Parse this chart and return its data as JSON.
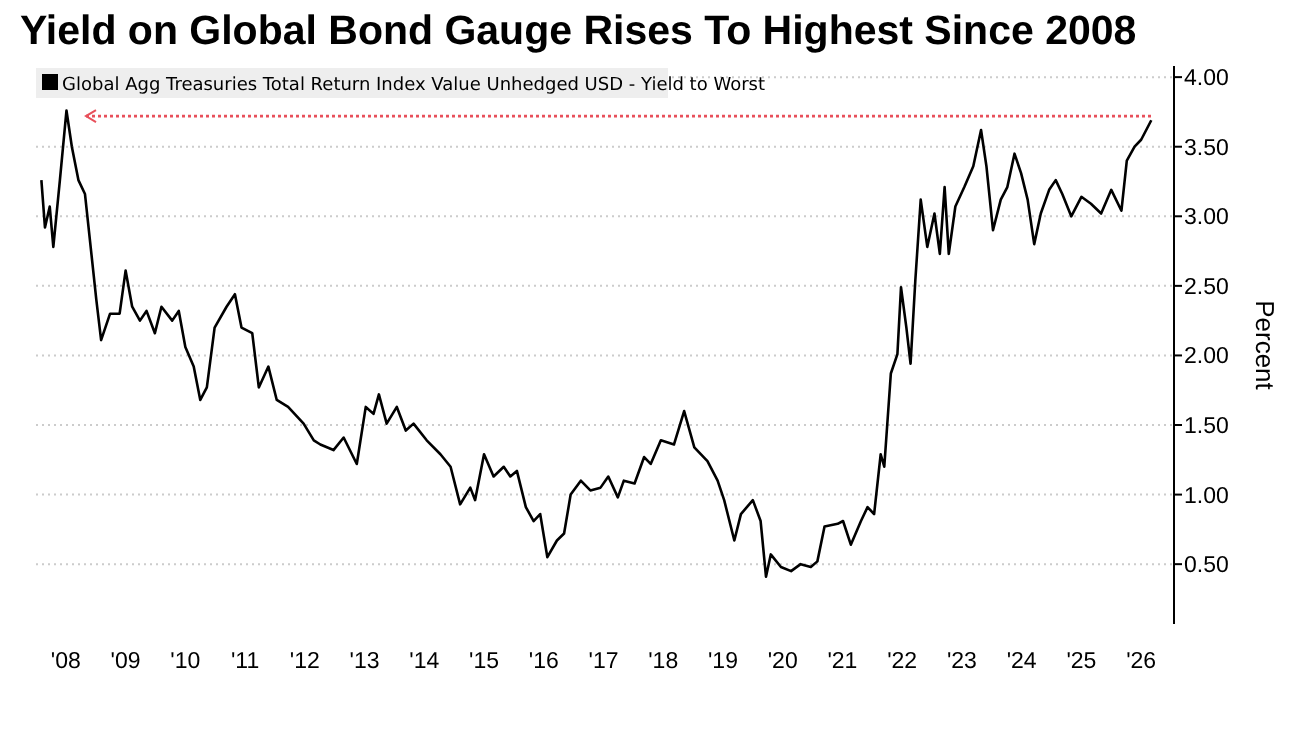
{
  "chart_data": {
    "type": "line",
    "title": "Yield on Global Bond Gauge Rises To Highest Since 2008",
    "ylabel": "Percent",
    "legend": "top left",
    "grid": "y",
    "xlim": [
      2007.5,
      2026.55
    ],
    "ylim": [
      0.07,
      4.08
    ],
    "xticks": [
      {
        "value": 2008,
        "label": "'08"
      },
      {
        "value": 2009,
        "label": "'09"
      },
      {
        "value": 2010,
        "label": "'10"
      },
      {
        "value": 2011,
        "label": "'11"
      },
      {
        "value": 2012,
        "label": "'12"
      },
      {
        "value": 2013,
        "label": "'13"
      },
      {
        "value": 2014,
        "label": "'14"
      },
      {
        "value": 2015,
        "label": "'15"
      },
      {
        "value": 2016,
        "label": "'16"
      },
      {
        "value": 2017,
        "label": "'17"
      },
      {
        "value": 2018,
        "label": "'18"
      },
      {
        "value": 2019,
        "label": "'19"
      },
      {
        "value": 2020,
        "label": "'20"
      },
      {
        "value": 2021,
        "label": "'21"
      },
      {
        "value": 2022,
        "label": "'22"
      },
      {
        "value": 2023,
        "label": "'23"
      },
      {
        "value": 2024,
        "label": "'24"
      },
      {
        "value": 2025,
        "label": "'25"
      },
      {
        "value": 2026,
        "label": "'26"
      }
    ],
    "yticks": [
      {
        "value": 0.5,
        "label": "0.50"
      },
      {
        "value": 1,
        "label": "1.00"
      },
      {
        "value": 1.5,
        "label": "1.50"
      },
      {
        "value": 2,
        "label": "2.00"
      },
      {
        "value": 2.5,
        "label": "2.50"
      },
      {
        "value": 3,
        "label": "3.00"
      },
      {
        "value": 3.5,
        "label": "3.50"
      },
      {
        "value": 4,
        "label": "4.00"
      }
    ],
    "ref_lines": [
      {
        "axis": "y",
        "value": 3.72,
        "color": "#e8505b",
        "line_style": "dotted"
      }
    ],
    "series": [
      {
        "name": "Global Agg Treasuries Total Return Index Value Unhedged USD - Yield to Worst",
        "color": "#000000",
        "x": [
          2007.59,
          2007.65,
          2007.73,
          2007.79,
          2007.9,
          2008.01,
          2008.1,
          2008.21,
          2008.32,
          2008.44,
          2008.51,
          2008.59,
          2008.74,
          2008.9,
          2009.0,
          2009.11,
          2009.24,
          2009.35,
          2009.49,
          2009.6,
          2009.78,
          2009.89,
          2010.0,
          2010.14,
          2010.25,
          2010.36,
          2010.49,
          2010.69,
          2010.83,
          2010.94,
          2011.12,
          2011.23,
          2011.39,
          2011.53,
          2011.72,
          2011.98,
          2012.15,
          2012.26,
          2012.48,
          2012.65,
          2012.87,
          2013.02,
          2013.15,
          2013.24,
          2013.37,
          2013.54,
          2013.69,
          2013.82,
          2014.04,
          2014.27,
          2014.44,
          2014.6,
          2014.77,
          2014.85,
          2015.0,
          2015.16,
          2015.33,
          2015.44,
          2015.55,
          2015.7,
          2015.83,
          2015.94,
          2016.06,
          2016.22,
          2016.34,
          2016.45,
          2016.62,
          2016.78,
          2016.95,
          2017.08,
          2017.24,
          2017.34,
          2017.52,
          2017.68,
          2017.79,
          2017.96,
          2018.18,
          2018.35,
          2018.52,
          2018.74,
          2018.91,
          2019.02,
          2019.19,
          2019.3,
          2019.5,
          2019.63,
          2019.72,
          2019.8,
          2019.97,
          2020.14,
          2020.3,
          2020.47,
          2020.58,
          2020.7,
          2020.92,
          2021.01,
          2021.14,
          2021.31,
          2021.42,
          2021.53,
          2021.64,
          2021.7,
          2021.81,
          2021.92,
          2021.98,
          2022.07,
          2022.14,
          2022.22,
          2022.31,
          2022.42,
          2022.54,
          2022.63,
          2022.71,
          2022.78,
          2022.89,
          2023.04,
          2023.19,
          2023.32,
          2023.41,
          2023.52,
          2023.65,
          2023.76,
          2023.88,
          2023.99,
          2024.1,
          2024.21,
          2024.32,
          2024.46,
          2024.57,
          2024.68,
          2024.83,
          2025.0,
          2025.16,
          2025.33,
          2025.5,
          2025.67,
          2025.76,
          2025.89,
          2026.0,
          2026.17
        ],
        "values": [
          3.26,
          2.92,
          3.07,
          2.78,
          3.26,
          3.76,
          3.5,
          3.26,
          3.16,
          2.68,
          2.4,
          2.11,
          2.3,
          2.3,
          2.61,
          2.35,
          2.25,
          2.32,
          2.16,
          2.35,
          2.25,
          2.32,
          2.06,
          1.92,
          1.68,
          1.77,
          2.2,
          2.35,
          2.44,
          2.2,
          2.16,
          1.77,
          1.92,
          1.68,
          1.63,
          1.51,
          1.39,
          1.36,
          1.32,
          1.41,
          1.22,
          1.63,
          1.58,
          1.72,
          1.51,
          1.63,
          1.46,
          1.51,
          1.39,
          1.29,
          1.2,
          0.93,
          1.05,
          0.96,
          1.29,
          1.13,
          1.2,
          1.13,
          1.17,
          0.91,
          0.81,
          0.86,
          0.55,
          0.67,
          0.72,
          1.0,
          1.1,
          1.03,
          1.05,
          1.13,
          0.98,
          1.1,
          1.08,
          1.27,
          1.22,
          1.39,
          1.36,
          1.6,
          1.34,
          1.24,
          1.1,
          0.96,
          0.67,
          0.86,
          0.96,
          0.81,
          0.41,
          0.57,
          0.48,
          0.45,
          0.5,
          0.48,
          0.52,
          0.77,
          0.79,
          0.81,
          0.64,
          0.81,
          0.91,
          0.86,
          1.29,
          1.2,
          1.87,
          2.01,
          2.49,
          2.2,
          1.94,
          2.54,
          3.12,
          2.78,
          3.02,
          2.73,
          3.21,
          2.73,
          3.07,
          3.21,
          3.36,
          3.62,
          3.36,
          2.9,
          3.12,
          3.21,
          3.45,
          3.31,
          3.12,
          2.8,
          3.02,
          3.19,
          3.26,
          3.16,
          3.0,
          3.14,
          3.09,
          3.02,
          3.19,
          3.04,
          3.4,
          3.5,
          3.55,
          3.69
        ]
      }
    ]
  }
}
